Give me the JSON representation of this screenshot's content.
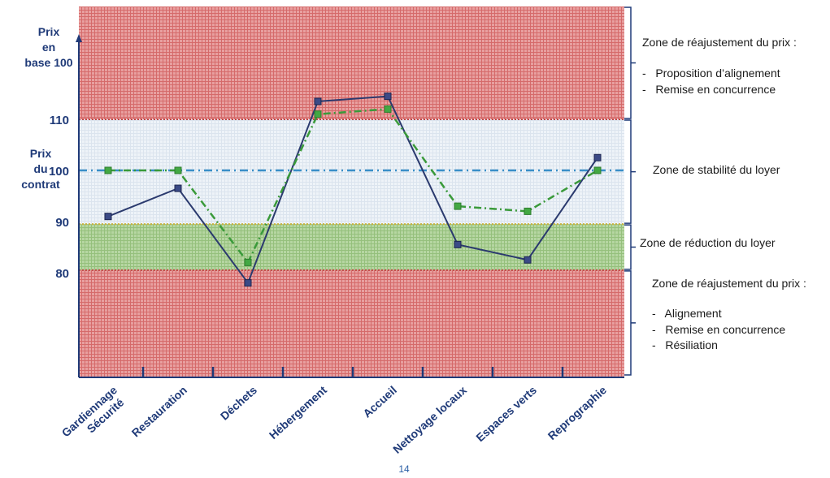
{
  "page_number": "14",
  "colors": {
    "red_zone": "#e28a8a",
    "stable_zone": "#e8eef5",
    "green_zone": "#a9cf92",
    "axis": "#1f3a78",
    "series_solid": "#2b3a6e",
    "series_dashed": "#3a9a3a",
    "reference_line": "#3a8fc8"
  },
  "chart_data": {
    "type": "line",
    "ylabel": "Prix en base 100",
    "y_tick_labels": [
      "110",
      "100",
      "90",
      "80"
    ],
    "y_ticks": [
      110,
      100,
      90,
      80
    ],
    "ylim": [
      57,
      155
    ],
    "contract_label": "Prix du contrat",
    "reference_value": 100,
    "categories": [
      "Gardiennage Sécurité",
      "Restauration",
      "Déchets",
      "Hébergement",
      "Accueil",
      "Nettoyage locaux",
      "Espaces verts",
      "Reprographie"
    ],
    "series": [
      {
        "style": "solid",
        "color": "#2b3a6e",
        "values": [
          91,
          96.5,
          78,
          113.5,
          114.5,
          85.5,
          82.5,
          102.5
        ]
      },
      {
        "style": "dash-dot",
        "color": "#3a9a3a",
        "values": [
          100,
          100,
          82,
          111,
          112,
          93,
          92,
          100
        ]
      }
    ],
    "zones": [
      {
        "id": "top",
        "from": 110,
        "to": 157,
        "color": "#e28a8a",
        "lines": [
          "Zone de réajustement du prix :",
          "-   Proposition d’alignement",
          "-   Remise en concurrence"
        ]
      },
      {
        "id": "stable",
        "from": 89.5,
        "to": 110,
        "color": "#e8eef5",
        "lines": [
          "Zone de stabilité du loyer"
        ]
      },
      {
        "id": "reduction",
        "from": 80.5,
        "to": 89.5,
        "color": "#a9cf92",
        "lines": [
          "Zone de réduction du loyer"
        ]
      },
      {
        "id": "bottom",
        "from": 57,
        "to": 80.5,
        "color": "#e28a8a",
        "lines": [
          "Zone de réajustement du prix :",
          "-   Alignement",
          "-   Remise en concurrence",
          "-   Résiliation"
        ]
      }
    ],
    "legend": "none"
  }
}
